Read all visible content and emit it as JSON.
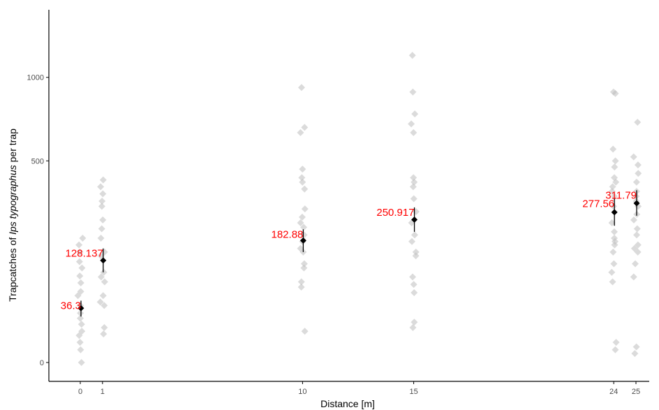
{
  "chart_data": {
    "type": "scatter",
    "title": "",
    "xlabel": "Distance [m]",
    "ylabel_prefix": "Trapcatches of ",
    "ylabel_species": "Ips typographus",
    "ylabel_suffix": " per trap",
    "y_scale": "sqrt",
    "xlim": [
      -1,
      26
    ],
    "ylim": [
      0,
      1225
    ],
    "x_ticks": [
      0,
      1,
      10,
      15,
      24,
      25
    ],
    "x_tick_labels": [
      "0",
      "1",
      "10",
      "15",
      "24",
      "25"
    ],
    "y_ticks": [
      0,
      500,
      1000
    ],
    "y_tick_labels": [
      "0",
      "500",
      "1000"
    ],
    "grid": false,
    "colors": {
      "raw_points": "#bdbdbd",
      "mean_points": "#000000",
      "labels": "#ff0000",
      "axis": "#000000"
    },
    "raw_points": [
      {
        "x": 0,
        "values": [
          0,
          2,
          5,
          9,
          12,
          18,
          24,
          30,
          40,
          55,
          62,
          78,
          92,
          110,
          125,
          150,
          170,
          190
        ]
      },
      {
        "x": 1,
        "values": [
          10,
          15,
          40,
          45,
          55,
          80,
          90,
          100,
          140,
          150,
          190,
          220,
          250,
          300,
          320,
          350,
          380,
          410
        ]
      },
      {
        "x": 10,
        "values": [
          12,
          70,
          80,
          110,
          120,
          150,
          160,
          180,
          200,
          225,
          240,
          260,
          290,
          370,
          400,
          420,
          460,
          650,
          680,
          930
        ]
      },
      {
        "x": 15,
        "values": [
          15,
          20,
          60,
          75,
          90,
          140,
          150,
          180,
          200,
          240,
          280,
          330,
          380,
          400,
          420,
          650,
          700,
          760,
          900,
          1160
        ]
      },
      {
        "x": 24,
        "values": [
          2,
          5,
          80,
          100,
          120,
          150,
          170,
          180,
          190,
          210,
          240,
          300,
          340,
          360,
          380,
          400,
          420,
          470,
          500,
          560,
          890,
          900
        ]
      },
      {
        "x": 25,
        "values": [
          1,
          3,
          90,
          120,
          150,
          160,
          170,
          200,
          220,
          250,
          270,
          300,
          320,
          340,
          360,
          400,
          440,
          480,
          520,
          710
        ]
      }
    ],
    "means": [
      {
        "x": 0,
        "mean": 36.3,
        "label": "36.3",
        "lower": 26,
        "upper": 47
      },
      {
        "x": 1,
        "mean": 128.137,
        "label": "128.137",
        "lower": 100,
        "upper": 160
      },
      {
        "x": 10,
        "mean": 182.88,
        "label": "182.88",
        "lower": 150,
        "upper": 218
      },
      {
        "x": 15,
        "mean": 250.917,
        "label": "250.917",
        "lower": 210,
        "upper": 296
      },
      {
        "x": 24,
        "mean": 277.56,
        "label": "277.56",
        "lower": 230,
        "upper": 330
      },
      {
        "x": 25,
        "mean": 311.79,
        "label": "311.79",
        "lower": 265,
        "upper": 365
      }
    ]
  }
}
